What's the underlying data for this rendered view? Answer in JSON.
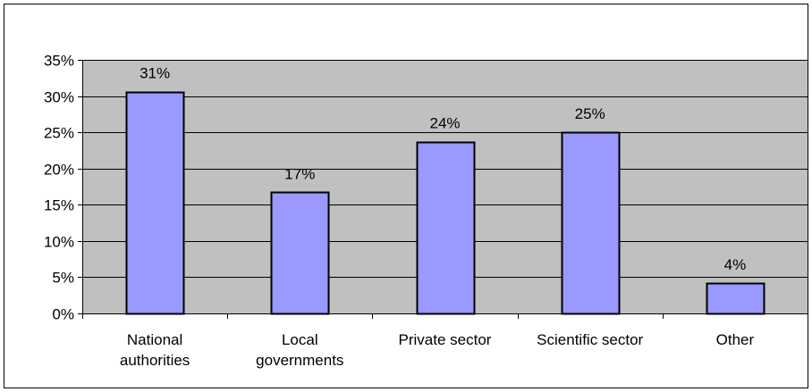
{
  "chart_data": {
    "type": "bar",
    "categories": [
      [
        "National",
        "authorities"
      ],
      [
        "Local",
        "governments"
      ],
      [
        "Private sector"
      ],
      [
        "Scientific sector"
      ],
      [
        "Other"
      ]
    ],
    "values": [
      30.6,
      16.7,
      23.7,
      25.0,
      4.2
    ],
    "data_labels": [
      "31%",
      "17%",
      "24%",
      "25%",
      "4%"
    ],
    "title": "",
    "xlabel": "",
    "ylabel": "",
    "ylim": [
      0,
      35
    ],
    "yticks": [
      0,
      5,
      10,
      15,
      20,
      25,
      30,
      35
    ],
    "ytick_labels": [
      "0%",
      "5%",
      "10%",
      "15%",
      "20%",
      "25%",
      "30%",
      "35%"
    ],
    "grid": true,
    "legend": "none",
    "colors": {
      "plot_background": "#c0c0c0",
      "bar_fill": "#9999ff",
      "bar_stroke": "#000000",
      "gridline": "#000000"
    }
  }
}
